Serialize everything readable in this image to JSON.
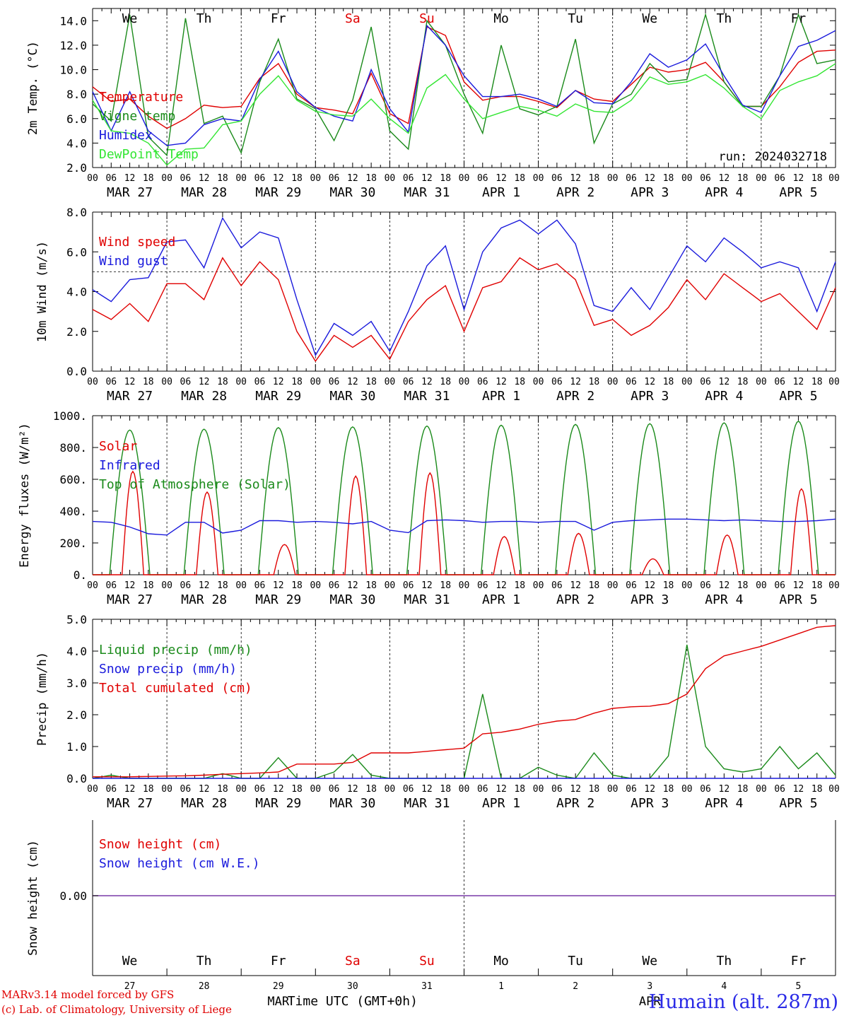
{
  "chart_data": [
    {
      "type": "line",
      "ylabel": "2m Temp. (°C)",
      "ylim": [
        2.0,
        15.0
      ],
      "yticks": [
        "2.0",
        "4.0",
        "6.0",
        "8.0",
        "10.0",
        "12.0",
        "14.0"
      ],
      "run_label": "run: 2024032718",
      "day_names": [
        {
          "text": "We",
          "color": "#000000"
        },
        {
          "text": "Th",
          "color": "#000000"
        },
        {
          "text": "Fr",
          "color": "#000000"
        },
        {
          "text": "Sa",
          "color": "#e00000"
        },
        {
          "text": "Su",
          "color": "#e00000"
        },
        {
          "text": "Mo",
          "color": "#000000"
        },
        {
          "text": "Tu",
          "color": "#000000"
        },
        {
          "text": "We",
          "color": "#000000"
        },
        {
          "text": "Th",
          "color": "#000000"
        },
        {
          "text": "Fr",
          "color": "#000000"
        }
      ],
      "x_hours": [
        0,
        6,
        12,
        18,
        24,
        30,
        36,
        42,
        48,
        54,
        60,
        66,
        72,
        78,
        84,
        90,
        96,
        102,
        108,
        114,
        120,
        126,
        132,
        138,
        144,
        150,
        156,
        162,
        168,
        174,
        180,
        186,
        192,
        198,
        204,
        210,
        216,
        222,
        228,
        234,
        240
      ],
      "series": [
        {
          "name": "Temperature",
          "color": "#e00000",
          "values": [
            8.6,
            7.4,
            7.6,
            6.2,
            5.2,
            6.0,
            7.1,
            6.9,
            7.0,
            9.3,
            10.5,
            8.0,
            6.9,
            6.7,
            6.4,
            9.7,
            6.4,
            5.6,
            13.5,
            12.8,
            9.0,
            7.5,
            7.8,
            7.8,
            7.4,
            6.9,
            8.3,
            7.6,
            7.4,
            8.8,
            10.2,
            9.8,
            10.0,
            10.6,
            9.0,
            7.0,
            7.0,
            8.6,
            10.6,
            11.5,
            11.6
          ]
        },
        {
          "name": "Vigne temp",
          "color": "#1a8a1a",
          "values": [
            7.2,
            5.8,
            14.5,
            4.5,
            3.0,
            14.2,
            5.6,
            6.2,
            3.2,
            9.0,
            12.5,
            7.6,
            6.8,
            4.2,
            7.5,
            13.5,
            5.0,
            3.5,
            14.0,
            12.0,
            8.0,
            4.8,
            12.0,
            6.8,
            6.3,
            7.0,
            12.5,
            4.0,
            7.2,
            8.0,
            10.5,
            9.0,
            9.2,
            14.5,
            9.0,
            7.0,
            7.0,
            9.5,
            14.5,
            10.5,
            10.8
          ]
        },
        {
          "name": "Humidex",
          "color": "#1a1adc",
          "values": [
            8.2,
            5.0,
            8.2,
            5.0,
            3.8,
            4.0,
            5.5,
            6.0,
            5.8,
            9.2,
            11.5,
            8.2,
            6.9,
            6.2,
            5.8,
            10.0,
            6.8,
            4.9,
            13.6,
            12.0,
            9.5,
            7.8,
            7.8,
            8.0,
            7.6,
            7.0,
            8.3,
            7.3,
            7.2,
            9.0,
            11.3,
            10.2,
            10.8,
            12.1,
            9.5,
            7.1,
            6.5,
            9.5,
            11.9,
            12.4,
            13.2
          ]
        },
        {
          "name": "DewPoint Temp",
          "color": "#33e633",
          "values": [
            7.5,
            5.0,
            4.8,
            4.0,
            2.2,
            3.5,
            3.6,
            5.5,
            5.8,
            8.0,
            9.5,
            7.5,
            6.6,
            6.3,
            6.2,
            7.6,
            6.0,
            4.8,
            8.5,
            9.6,
            7.6,
            6.0,
            6.5,
            7.0,
            6.7,
            6.2,
            7.2,
            6.6,
            6.5,
            7.5,
            9.4,
            8.8,
            9.0,
            9.6,
            8.5,
            7.0,
            6.0,
            8.3,
            9.0,
            9.5,
            10.5
          ]
        }
      ]
    },
    {
      "type": "line",
      "ylabel": "10m Wind (m/s)",
      "ylim": [
        0.0,
        8.0
      ],
      "yticks": [
        "0.0",
        "2.0",
        "4.0",
        "6.0",
        "8.0"
      ],
      "reference_line": 5.0,
      "x_hours": [
        0,
        6,
        12,
        18,
        24,
        30,
        36,
        42,
        48,
        54,
        60,
        66,
        72,
        78,
        84,
        90,
        96,
        102,
        108,
        114,
        120,
        126,
        132,
        138,
        144,
        150,
        156,
        162,
        168,
        174,
        180,
        186,
        192,
        198,
        204,
        210,
        216,
        222,
        228,
        234,
        240
      ],
      "series": [
        {
          "name": "Wind speed",
          "color": "#e00000",
          "values": [
            3.1,
            2.6,
            3.4,
            2.5,
            4.4,
            4.4,
            3.6,
            5.7,
            4.3,
            5.5,
            4.6,
            2.0,
            0.5,
            1.8,
            1.2,
            1.8,
            0.6,
            2.5,
            3.6,
            4.3,
            2.0,
            4.2,
            4.5,
            5.7,
            5.1,
            5.4,
            4.6,
            2.3,
            2.6,
            1.8,
            2.3,
            3.2,
            4.6,
            3.6,
            4.9,
            4.2,
            3.5,
            3.9,
            3.0,
            2.1,
            4.2
          ]
        },
        {
          "name": "Wind gust",
          "color": "#1a1adc",
          "values": [
            4.1,
            3.5,
            4.6,
            4.7,
            6.5,
            6.6,
            5.2,
            7.7,
            6.2,
            7.0,
            6.7,
            3.6,
            0.8,
            2.4,
            1.8,
            2.5,
            1.0,
            3.0,
            5.3,
            6.3,
            3.1,
            6.0,
            7.2,
            7.6,
            6.9,
            7.6,
            6.4,
            3.3,
            3.0,
            4.2,
            3.1,
            4.7,
            6.3,
            5.5,
            6.7,
            6.0,
            5.2,
            5.5,
            5.2,
            3.0,
            5.5
          ]
        }
      ]
    },
    {
      "type": "line",
      "ylabel": "Energy fluxes (W/m²)",
      "ylim": [
        0,
        1000
      ],
      "yticks": [
        "0.",
        "200.",
        "400.",
        "600.",
        "800.",
        "1000."
      ],
      "series": [
        {
          "name": "Solar",
          "color": "#e00000",
          "peaks": [
            {
              "hour": 13,
              "value": 650
            },
            {
              "hour": 37,
              "value": 520
            },
            {
              "hour": 62,
              "value": 190
            },
            {
              "hour": 85,
              "value": 620
            },
            {
              "hour": 109,
              "value": 640
            },
            {
              "hour": 133,
              "value": 240
            },
            {
              "hour": 157,
              "value": 260
            },
            {
              "hour": 181,
              "value": 100
            },
            {
              "hour": 205,
              "value": 250
            },
            {
              "hour": 229,
              "value": 540
            }
          ]
        },
        {
          "name": "Infrared",
          "color": "#1a1adc",
          "values": [
            335,
            330,
            300,
            258,
            250,
            330,
            330,
            262,
            280,
            340,
            340,
            330,
            335,
            330,
            320,
            335,
            280,
            265,
            340,
            345,
            340,
            330,
            335,
            335,
            330,
            335,
            335,
            280,
            330,
            340,
            345,
            350,
            350,
            345,
            340,
            345,
            340,
            335,
            335,
            340,
            350
          ]
        },
        {
          "name": "Top of Atmosphere (Solar)",
          "color": "#1a8a1a",
          "peaks": [
            {
              "hour": 12,
              "value": 910
            },
            {
              "hour": 36,
              "value": 915
            },
            {
              "hour": 60,
              "value": 925
            },
            {
              "hour": 84,
              "value": 930
            },
            {
              "hour": 108,
              "value": 935
            },
            {
              "hour": 132,
              "value": 940
            },
            {
              "hour": 156,
              "value": 945
            },
            {
              "hour": 180,
              "value": 950
            },
            {
              "hour": 204,
              "value": 955
            },
            {
              "hour": 228,
              "value": 965
            }
          ]
        }
      ]
    },
    {
      "type": "line",
      "ylabel": "Precip (mm/h)",
      "ylim": [
        0.0,
        5.0
      ],
      "yticks": [
        "0.0",
        "1.0",
        "2.0",
        "3.0",
        "4.0",
        "5.0"
      ],
      "x_hours": [
        0,
        6,
        12,
        18,
        24,
        30,
        36,
        42,
        48,
        54,
        60,
        66,
        72,
        78,
        84,
        90,
        96,
        102,
        108,
        114,
        120,
        126,
        132,
        138,
        144,
        150,
        156,
        162,
        168,
        174,
        180,
        186,
        192,
        198,
        204,
        210,
        216,
        222,
        228,
        234,
        240
      ],
      "series": [
        {
          "name": "Liquid precip (mm/h)",
          "color": "#1a8a1a",
          "values": [
            0.0,
            0.1,
            0.0,
            0.0,
            0.0,
            0.0,
            0.0,
            0.15,
            0.0,
            0.0,
            0.65,
            0.0,
            0.0,
            0.2,
            0.75,
            0.1,
            0.0,
            0.0,
            0.0,
            0.0,
            0.0,
            2.65,
            0.0,
            0.0,
            0.35,
            0.1,
            0.0,
            0.8,
            0.1,
            0.0,
            0.0,
            0.7,
            4.2,
            1.0,
            0.3,
            0.2,
            0.3,
            1.0,
            0.3,
            0.8,
            0.1
          ]
        },
        {
          "name": "Snow precip (mm/h)",
          "color": "#1a1adc",
          "values": [
            0,
            0,
            0,
            0,
            0,
            0,
            0,
            0,
            0,
            0,
            0,
            0,
            0,
            0,
            0,
            0,
            0,
            0,
            0,
            0,
            0,
            0,
            0,
            0,
            0,
            0,
            0,
            0,
            0,
            0,
            0,
            0,
            0,
            0,
            0,
            0,
            0,
            0,
            0,
            0,
            0
          ]
        },
        {
          "name": "Total cumulated (cm)",
          "color": "#e00000",
          "values": [
            0.05,
            0.05,
            0.05,
            0.06,
            0.07,
            0.08,
            0.1,
            0.13,
            0.15,
            0.17,
            0.2,
            0.45,
            0.45,
            0.45,
            0.5,
            0.8,
            0.8,
            0.8,
            0.85,
            0.9,
            0.95,
            1.4,
            1.45,
            1.55,
            1.7,
            1.8,
            1.85,
            2.05,
            2.2,
            2.25,
            2.27,
            2.35,
            2.65,
            3.45,
            3.85,
            4.0,
            4.15,
            4.35,
            4.55,
            4.75,
            4.8
          ]
        }
      ]
    },
    {
      "type": "line",
      "ylabel": "Snow height (cm)",
      "yticks": [
        "0.00"
      ],
      "series": [
        {
          "name": "Snow height (cm)",
          "color": "#e00000",
          "values": [
            0,
            0
          ]
        },
        {
          "name": "Snow height (cm W.E.)",
          "color": "#1a1adc",
          "values": [
            0,
            0
          ]
        }
      ]
    }
  ],
  "axes": {
    "hour_ticks": [
      "00",
      "06",
      "12",
      "18"
    ],
    "final_tick": "00",
    "date_labels": [
      "MAR 27",
      "MAR 28",
      "MAR 29",
      "MAR 30",
      "MAR 31",
      "APR  1",
      "APR  2",
      "APR  3",
      "APR  4",
      "APR  5"
    ],
    "bottom_day_names": [
      {
        "text": "We",
        "color": "#000000"
      },
      {
        "text": "Th",
        "color": "#000000"
      },
      {
        "text": "Fr",
        "color": "#000000"
      },
      {
        "text": "Sa",
        "color": "#e00000"
      },
      {
        "text": "Su",
        "color": "#e00000"
      },
      {
        "text": "Mo",
        "color": "#000000"
      },
      {
        "text": "Tu",
        "color": "#000000"
      },
      {
        "text": "We",
        "color": "#000000"
      },
      {
        "text": "Th",
        "color": "#000000"
      },
      {
        "text": "Fr",
        "color": "#000000"
      }
    ],
    "bottom_day_numbers": [
      "27",
      "28",
      "29",
      "30",
      "31",
      "1",
      "2",
      "3",
      "4",
      "5"
    ],
    "month_left": "MAR",
    "month_right": "APR",
    "xlabel": "Time UTC (GMT+0h)"
  },
  "footer": {
    "credit_line1": "MARv3.14 model forced by GFS",
    "credit_line2": "(c) Lab. of Climatology, University of Liege",
    "station": "Humain (alt. 287m)"
  }
}
